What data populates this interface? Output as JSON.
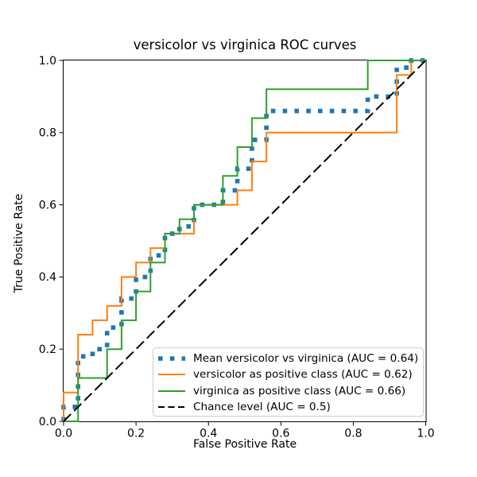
{
  "figure": {
    "title": "versicolor vs virginica ROC curves",
    "xlabel": "False Positive Rate",
    "ylabel": "True Positive Rate",
    "background_color": "#ffffff",
    "spine_color": "#000000",
    "tick_label_color": "#000000"
  },
  "legend": {
    "position": "lower right",
    "border_color": "#cccccc",
    "entries": [
      {
        "label": "Mean versicolor vs virginica (AUC = 0.64)",
        "color": "#1f77b4",
        "linestyle": "dotted"
      },
      {
        "label": "versicolor as positive class (AUC = 0.62)",
        "color": "#ff7f0e",
        "linestyle": "solid"
      },
      {
        "label": "virginica as positive class (AUC = 0.66)",
        "color": "#2ca02c",
        "linestyle": "solid"
      },
      {
        "label": "Chance level (AUC = 0.5)",
        "color": "#000000",
        "linestyle": "dashed"
      }
    ]
  },
  "chart_data": {
    "type": "line",
    "title": "versicolor vs virginica ROC curves",
    "xlabel": "False Positive Rate",
    "ylabel": "True Positive Rate",
    "xlim": [
      0.0,
      1.0
    ],
    "ylim": [
      0.0,
      1.0
    ],
    "x_ticks": [
      0.0,
      0.2,
      0.4,
      0.6,
      0.8,
      1.0
    ],
    "y_ticks": [
      0.0,
      0.2,
      0.4,
      0.6,
      0.8,
      1.0
    ],
    "x_tick_labels": [
      "0.0",
      "0.2",
      "0.4",
      "0.6",
      "0.8",
      "1.0"
    ],
    "y_tick_labels": [
      "0.0",
      "0.2",
      "0.4",
      "0.6",
      "0.8",
      "1.0"
    ],
    "grid": false,
    "legend_position": "lower right",
    "series": [
      {
        "name": "Mean versicolor vs virginica (AUC = 0.64)",
        "auc": 0.64,
        "color": "#1f77b4",
        "linestyle": "dotted",
        "linewidth": 5.6,
        "points": [
          [
            0,
            0
          ],
          [
            0,
            0.04
          ],
          [
            0.04,
            0.04
          ],
          [
            0.04,
            0.18
          ],
          [
            0.08,
            0.18
          ],
          [
            0.08,
            0.2
          ],
          [
            0.12,
            0.2
          ],
          [
            0.12,
            0.26
          ],
          [
            0.16,
            0.26
          ],
          [
            0.16,
            0.34
          ],
          [
            0.2,
            0.34
          ],
          [
            0.2,
            0.4
          ],
          [
            0.24,
            0.4
          ],
          [
            0.24,
            0.46
          ],
          [
            0.28,
            0.46
          ],
          [
            0.28,
            0.52
          ],
          [
            0.32,
            0.52
          ],
          [
            0.32,
            0.54
          ],
          [
            0.36,
            0.54
          ],
          [
            0.36,
            0.6
          ],
          [
            0.44,
            0.6
          ],
          [
            0.44,
            0.64
          ],
          [
            0.48,
            0.64
          ],
          [
            0.48,
            0.7
          ],
          [
            0.52,
            0.7
          ],
          [
            0.52,
            0.78
          ],
          [
            0.56,
            0.78
          ],
          [
            0.56,
            0.86
          ],
          [
            0.84,
            0.86
          ],
          [
            0.84,
            0.9
          ],
          [
            0.92,
            0.9
          ],
          [
            0.92,
            0.98
          ],
          [
            0.96,
            0.98
          ],
          [
            0.96,
            1.0
          ],
          [
            1.0,
            1.0
          ]
        ]
      },
      {
        "name": "versicolor as positive class (AUC = 0.62)",
        "auc": 0.62,
        "color": "#ff7f0e",
        "linestyle": "solid",
        "linewidth": 2,
        "points": [
          [
            0,
            0
          ],
          [
            0,
            0.08
          ],
          [
            0.04,
            0.08
          ],
          [
            0.04,
            0.24
          ],
          [
            0.08,
            0.24
          ],
          [
            0.08,
            0.28
          ],
          [
            0.12,
            0.28
          ],
          [
            0.12,
            0.32
          ],
          [
            0.16,
            0.32
          ],
          [
            0.16,
            0.4
          ],
          [
            0.2,
            0.4
          ],
          [
            0.2,
            0.44
          ],
          [
            0.24,
            0.44
          ],
          [
            0.24,
            0.48
          ],
          [
            0.28,
            0.48
          ],
          [
            0.28,
            0.52
          ],
          [
            0.36,
            0.52
          ],
          [
            0.36,
            0.6
          ],
          [
            0.48,
            0.6
          ],
          [
            0.48,
            0.64
          ],
          [
            0.52,
            0.64
          ],
          [
            0.52,
            0.72
          ],
          [
            0.56,
            0.72
          ],
          [
            0.56,
            0.8
          ],
          [
            0.92,
            0.8
          ],
          [
            0.92,
            0.96
          ],
          [
            0.96,
            0.96
          ],
          [
            0.96,
            1.0
          ],
          [
            1.0,
            1.0
          ]
        ]
      },
      {
        "name": "virginica as positive class (AUC = 0.66)",
        "auc": 0.66,
        "color": "#2ca02c",
        "linestyle": "solid",
        "linewidth": 2,
        "points": [
          [
            0,
            0
          ],
          [
            0.04,
            0
          ],
          [
            0.04,
            0.12
          ],
          [
            0.12,
            0.12
          ],
          [
            0.12,
            0.2
          ],
          [
            0.16,
            0.2
          ],
          [
            0.16,
            0.28
          ],
          [
            0.2,
            0.28
          ],
          [
            0.2,
            0.36
          ],
          [
            0.24,
            0.36
          ],
          [
            0.24,
            0.44
          ],
          [
            0.28,
            0.44
          ],
          [
            0.28,
            0.52
          ],
          [
            0.32,
            0.52
          ],
          [
            0.32,
            0.56
          ],
          [
            0.36,
            0.56
          ],
          [
            0.36,
            0.6
          ],
          [
            0.44,
            0.6
          ],
          [
            0.44,
            0.68
          ],
          [
            0.48,
            0.68
          ],
          [
            0.48,
            0.76
          ],
          [
            0.52,
            0.76
          ],
          [
            0.52,
            0.84
          ],
          [
            0.56,
            0.84
          ],
          [
            0.56,
            0.92
          ],
          [
            0.84,
            0.92
          ],
          [
            0.84,
            1.0
          ],
          [
            1.0,
            1.0
          ]
        ]
      },
      {
        "name": "Chance level (AUC = 0.5)",
        "auc": 0.5,
        "color": "#000000",
        "linestyle": "dashed",
        "linewidth": 2,
        "points": [
          [
            0,
            0
          ],
          [
            1,
            1
          ]
        ]
      }
    ]
  }
}
